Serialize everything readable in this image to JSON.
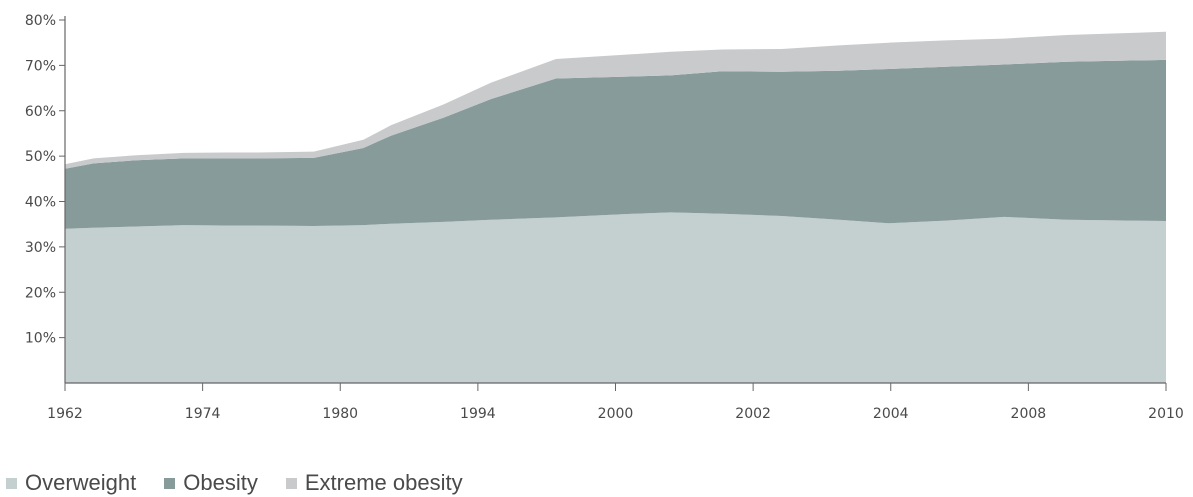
{
  "chart_data": {
    "type": "area",
    "stacked": true,
    "categories": [
      "1962",
      "1974",
      "1980",
      "1994",
      "2000",
      "2002",
      "2004",
      "2008",
      "2010"
    ],
    "x": [
      0,
      2.6,
      6.5,
      10.8,
      14.5,
      17.5,
      22.6,
      27.1,
      29.6,
      34.4,
      38.7,
      44.6,
      50.6,
      55.0,
      59.7,
      65.1,
      70.3,
      74.8,
      80.0,
      85.3,
      91.0,
      100
    ],
    "series": [
      {
        "name": "Overweight",
        "color": "#c4cfcf",
        "values": [
          34.0,
          34.2,
          34.5,
          34.8,
          34.7,
          34.7,
          34.6,
          34.8,
          35.1,
          35.5,
          36.0,
          36.5,
          37.2,
          37.6,
          37.3,
          36.8,
          36.0,
          35.2,
          35.8,
          36.6,
          36.0,
          35.7
        ]
      },
      {
        "name": "Obesity",
        "color": "#879b9b",
        "values": [
          13.2,
          14.2,
          14.6,
          14.7,
          14.8,
          14.8,
          15.0,
          17.0,
          19.4,
          23.0,
          26.6,
          30.6,
          30.3,
          30.2,
          31.4,
          31.8,
          32.8,
          34.0,
          33.9,
          33.6,
          34.8,
          35.5
        ]
      },
      {
        "name": "Extreme obesity",
        "color": "#c8cacc",
        "values": [
          1.0,
          1.1,
          1.1,
          1.2,
          1.3,
          1.3,
          1.4,
          1.8,
          2.3,
          2.9,
          3.6,
          4.3,
          4.8,
          5.2,
          4.8,
          5.0,
          5.6,
          5.8,
          5.8,
          5.7,
          5.9,
          6.2
        ]
      }
    ],
    "xlim": [
      0,
      100
    ],
    "ylim": [
      0,
      80
    ],
    "yticks": [
      10,
      20,
      30,
      40,
      50,
      60,
      70,
      80
    ],
    "ytick_labels": [
      "10%",
      "20%",
      "30%",
      "40%",
      "50%",
      "60%",
      "70%",
      "80%"
    ],
    "title": "",
    "xlabel": "",
    "ylabel": "",
    "grid": false,
    "legend_position": "bottom-left"
  },
  "legend": [
    {
      "label": "Overweight",
      "color": "#c4cfcf"
    },
    {
      "label": "Obesity",
      "color": "#879b9b"
    },
    {
      "label": "Extreme obesity",
      "color": "#c8cacc"
    }
  ]
}
